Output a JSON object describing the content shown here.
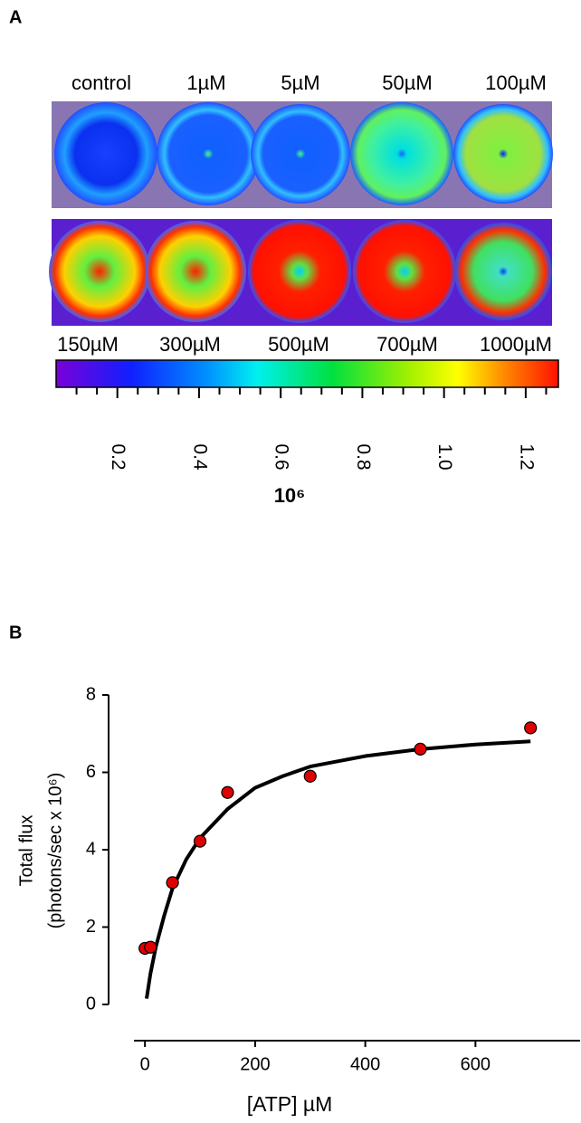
{
  "panel_a": {
    "label": "A",
    "top_labels": [
      "control",
      "1µM",
      "5µM",
      "50µM",
      "100µM"
    ],
    "bottom_labels": [
      "150µM",
      "300µM",
      "500µM",
      "700µM",
      "1000µM"
    ],
    "colorbar": {
      "clim": [
        0.05,
        1.28
      ],
      "ticks": [
        0.2,
        0.4,
        0.6,
        0.8,
        {
          "value": 1.0,
          "label": "1.0"
        },
        1.2
      ],
      "minor_ticks": [
        0.1,
        0.15,
        0.25,
        0.3,
        0.35,
        0.45,
        0.5,
        0.55,
        0.65,
        0.7,
        0.75,
        0.85,
        0.9,
        0.95,
        1.05,
        1.1,
        1.15,
        1.25
      ],
      "label": "10⁶"
    }
  },
  "panel_b_label": "B",
  "chart_data": {
    "type": "scatter",
    "ylabel": [
      "Total flux",
      "(photons/sec x 10⁶)"
    ],
    "xlabel": "[ATP] µM",
    "x": [
      0,
      10,
      50,
      100,
      150,
      300,
      500,
      700
    ],
    "series": [
      {
        "color": "#e00000",
        "values": [
          1.45,
          1.48,
          3.15,
          4.22,
          5.48,
          5.9,
          6.6,
          7.15
        ]
      },
      {
        "type": "line",
        "color": "#000000",
        "x": [
          3,
          10,
          20,
          35,
          50,
          75,
          100,
          150,
          200,
          250,
          300,
          400,
          500,
          600,
          700
        ],
        "values": [
          0.15,
          0.8,
          1.5,
          2.3,
          3.0,
          3.75,
          4.3,
          5.05,
          5.6,
          5.9,
          6.15,
          6.42,
          6.6,
          6.72,
          6.8
        ]
      }
    ],
    "xlim": [
      -20,
      790
    ],
    "ylim": [
      0,
      8
    ],
    "xticks": [
      0,
      200,
      400,
      600
    ],
    "yticks": [
      0,
      2,
      4,
      6,
      8
    ]
  }
}
